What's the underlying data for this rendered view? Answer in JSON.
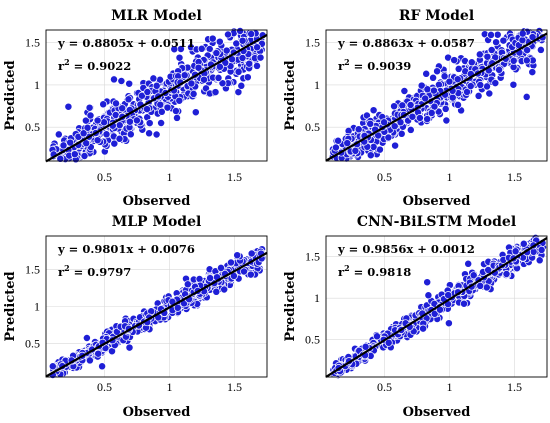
{
  "chart_data": [
    {
      "type": "scatter",
      "title": "MLR Model",
      "xlabel": "Observed",
      "ylabel": "Predicted",
      "xlim": [
        0.05,
        1.75
      ],
      "ylim": [
        0.1,
        1.65
      ],
      "xticks": [
        "0.5",
        "1",
        "1.5"
      ],
      "yticks": [
        "0.5",
        "1",
        "1.5"
      ],
      "grid": true,
      "fit": {
        "slope": 0.8805,
        "intercept": 0.0511
      },
      "equation": "y = 0.8805x  +  0.0511",
      "r2_label": "r",
      "r2_sup": "2",
      "r2_value": " = 0.9022",
      "spread": 0.13
    },
    {
      "type": "scatter",
      "title": "RF Model",
      "xlabel": "Observed",
      "ylabel": "Predicted",
      "xlim": [
        0.05,
        1.75
      ],
      "ylim": [
        0.1,
        1.65
      ],
      "xticks": [
        "0.5",
        "1",
        "1.5"
      ],
      "yticks": [
        "0.5",
        "1",
        "1.5"
      ],
      "grid": true,
      "fit": {
        "slope": 0.8863,
        "intercept": 0.0587
      },
      "equation": "y = 0.8863x  +  0.0587",
      "r2_label": "r",
      "r2_sup": "2",
      "r2_value": " = 0.9039",
      "spread": 0.12
    },
    {
      "type": "scatter",
      "title": "MLP Model",
      "xlabel": "Observed",
      "ylabel": "Predicted",
      "xlim": [
        0.05,
        1.75
      ],
      "ylim": [
        0.05,
        1.95
      ],
      "xticks": [
        "0.5",
        "1",
        "1.5"
      ],
      "yticks": [
        "0.5",
        "1",
        "1.5"
      ],
      "grid": true,
      "fit": {
        "slope": 0.9801,
        "intercept": 0.0076
      },
      "equation": "y = 0.9801x  +  0.0076",
      "r2_label": "r",
      "r2_sup": "2",
      "r2_value": " = 0.9797",
      "spread": 0.065
    },
    {
      "type": "scatter",
      "title": "CNN-BiLSTM Model",
      "xlabel": "Observed",
      "ylabel": "Predicted",
      "xlim": [
        0.05,
        1.75
      ],
      "ylim": [
        0.05,
        1.75
      ],
      "xticks": [
        "0.5",
        "1",
        "1.5"
      ],
      "yticks": [
        "0.5",
        "1",
        "1.5"
      ],
      "grid": true,
      "fit": {
        "slope": 0.9856,
        "intercept": 0.0012
      },
      "equation": "y = 0.9856x  +  0.0012",
      "r2_label": "r",
      "r2_sup": "2",
      "r2_value": " = 0.9818",
      "spread": 0.06
    }
  ],
  "colors": {
    "marker_fill": "#1f1fd6",
    "marker_edge": "#ffffff",
    "fit_line": "#000000",
    "grid": "#d9d9d9"
  }
}
